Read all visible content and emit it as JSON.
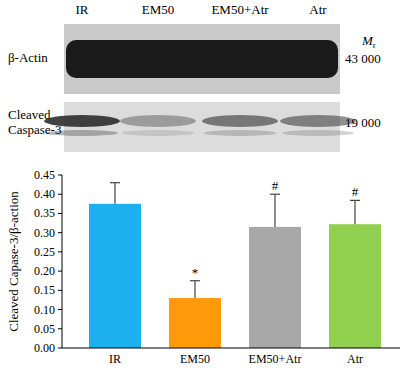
{
  "blot": {
    "lanes": [
      "IR",
      "EM50",
      "EM50+Atr",
      "Atr"
    ],
    "mw_header": "Mr",
    "rows": [
      {
        "label": "β-Actin",
        "mw": "43 000"
      },
      {
        "label": "Cleaved Caspase-3",
        "mw": "19 000"
      }
    ]
  },
  "chart_data": {
    "type": "bar",
    "categories": [
      "IR",
      "EM50",
      "EM50+Atr",
      "Atr"
    ],
    "values": [
      0.375,
      0.13,
      0.315,
      0.322
    ],
    "errors": [
      0.055,
      0.045,
      0.085,
      0.062
    ],
    "colors": [
      "#1cb0ee",
      "#ff9a0a",
      "#a8a8a8",
      "#92d050"
    ],
    "y_label": "Cleaved Capase-3/β-action",
    "ylim": [
      0,
      0.45
    ],
    "yticks": [
      {
        "value": 0,
        "label": "0.00"
      },
      {
        "value": 0.05,
        "label": "0.05"
      },
      {
        "value": 0.1,
        "label": "0.10"
      },
      {
        "value": 0.15,
        "label": "0.15"
      },
      {
        "value": 0.2,
        "label": "0.20"
      },
      {
        "value": 0.25,
        "label": "0.25"
      },
      {
        "value": 0.3,
        "label": "0.30"
      },
      {
        "value": 0.35,
        "label": "0.35"
      },
      {
        "value": 0.4,
        "label": "0.40"
      },
      {
        "value": 0.45,
        "label": "0.45"
      }
    ],
    "annotations": [
      {
        "category": "EM50",
        "text": "*"
      },
      {
        "category": "EM50+Atr",
        "text": "#"
      },
      {
        "category": "Atr",
        "text": "#"
      }
    ],
    "grid": false
  }
}
